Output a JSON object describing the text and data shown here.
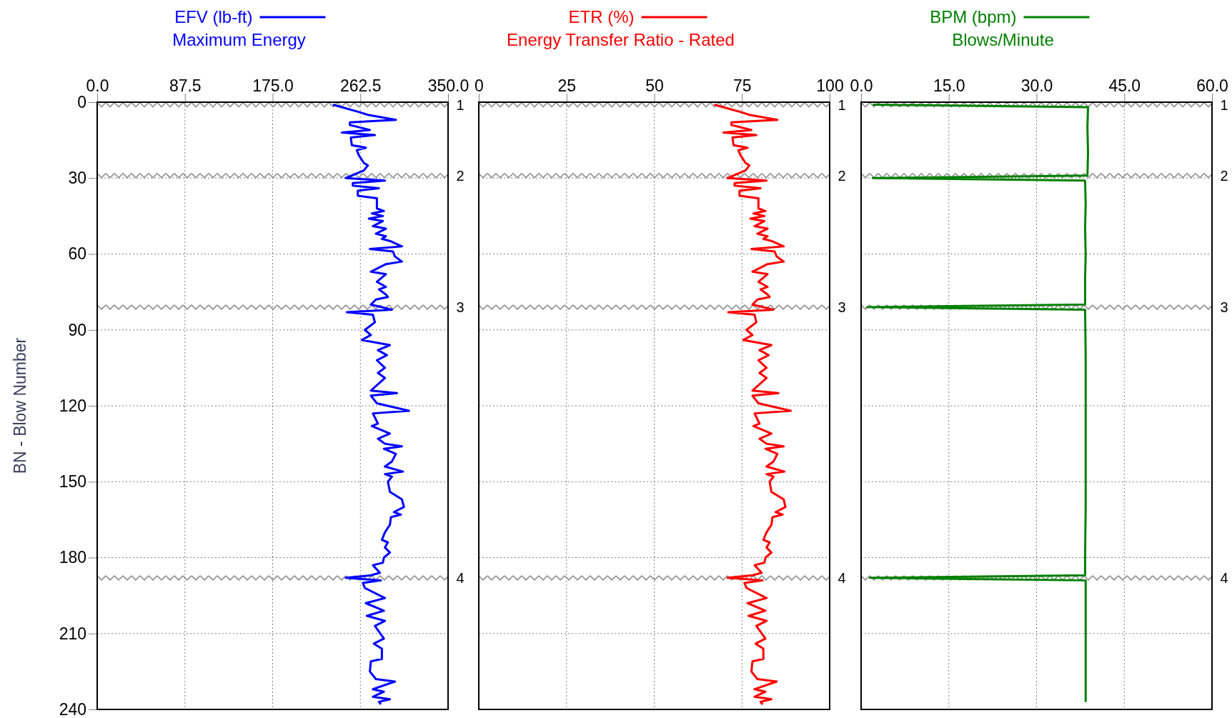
{
  "chart_data": [
    {
      "type": "line",
      "title": "Maximum Energy",
      "ylabel": "BN - Blow Number",
      "orientation": "horizontal",
      "legend": "top",
      "grid": true,
      "xlim": [
        0,
        350
      ],
      "xticks": [
        {
          "value": 0,
          "label": "0.0"
        },
        87.5,
        {
          "value": 175,
          "label": "175.0"
        },
        262.5,
        {
          "value": 350,
          "label": "350.0"
        }
      ],
      "ylim": [
        240,
        0
      ],
      "yticks": [
        0,
        30,
        60,
        90,
        120,
        150,
        180,
        210,
        240
      ],
      "ref_lines": [
        {
          "axis": "y",
          "value": 1,
          "color": "#808080"
        },
        {
          "axis": "y",
          "value": 29,
          "color": "#808080"
        },
        {
          "axis": "y",
          "value": 81,
          "color": "#808080"
        },
        {
          "axis": "y",
          "value": 188,
          "color": "#808080"
        }
      ],
      "annotations": [
        {
          "text": "1",
          "x": 350,
          "y": 1
        },
        {
          "text": "2",
          "x": 350,
          "y": 29
        },
        {
          "text": "3",
          "x": 350,
          "y": 81
        },
        {
          "text": "4",
          "x": 350,
          "y": 188
        }
      ],
      "x": [
        1,
        4,
        5,
        7,
        8,
        9,
        11,
        12,
        13,
        14,
        17,
        18,
        19,
        21,
        24,
        25,
        27,
        28,
        30,
        31,
        32,
        33,
        34,
        35,
        37,
        38,
        42,
        43,
        44,
        45,
        46,
        47,
        49,
        50,
        52,
        53,
        54,
        55,
        57,
        58,
        59,
        61,
        63,
        64,
        67,
        68,
        71,
        73,
        74,
        76,
        77,
        78,
        80,
        82,
        83,
        84,
        87,
        90,
        92,
        94,
        96,
        98,
        100,
        102,
        105,
        107,
        109,
        114,
        115,
        116,
        119,
        122,
        123,
        127,
        128,
        131,
        133,
        135,
        136,
        137,
        139,
        142,
        144,
        146,
        147,
        148,
        150,
        154,
        157,
        160,
        162,
        163,
        164,
        167,
        170,
        173,
        174,
        176,
        178,
        180,
        182,
        183,
        186,
        187,
        188,
        189,
        190,
        192,
        196,
        198,
        201,
        203,
        205,
        207,
        212,
        214,
        216,
        220,
        221,
        225,
        228,
        229,
        232,
        233,
        235,
        236,
        237,
        238
      ],
      "series": [
        {
          "name": "EFV (lb-ft)",
          "color": "#0000ff",
          "values": [
            235,
            262,
            270,
            298,
            252,
            252,
            272,
            244,
            277,
            253,
            254,
            268,
            259,
            261,
            266,
            270,
            266,
            260,
            248,
            287,
            255,
            255,
            281,
            260,
            260,
            279,
            279,
            286,
            274,
            285,
            271,
            285,
            275,
            288,
            278,
            288,
            284,
            293,
            304,
            272,
            295,
            297,
            304,
            288,
            273,
            288,
            279,
            288,
            281,
            288,
            290,
            278,
            273,
            294,
            249,
            275,
            277,
            267,
            273,
            264,
            292,
            280,
            289,
            279,
            287,
            280,
            287,
            273,
            299,
            273,
            279,
            311,
            275,
            280,
            274,
            292,
            280,
            287,
            304,
            286,
            298,
            294,
            287,
            305,
            287,
            294,
            290,
            292,
            304,
            306,
            296,
            303,
            293,
            292,
            287,
            284,
            290,
            287,
            292,
            286,
            285,
            275,
            282,
            273,
            248,
            283,
            265,
            267,
            287,
            268,
            286,
            269,
            287,
            277,
            286,
            276,
            284,
            284,
            273,
            272,
            278,
            297,
            275,
            286,
            275,
            292,
            281,
            283
          ]
        }
      ]
    },
    {
      "type": "line",
      "title": "Energy Transfer Ratio - Rated",
      "orientation": "horizontal",
      "legend": "top",
      "grid": true,
      "tick_labels": "x",
      "xlim": [
        0,
        100
      ],
      "xticks": [
        0,
        25,
        50,
        75,
        100
      ],
      "ylim": [
        240,
        0
      ],
      "yticks": [
        0,
        30,
        60,
        90,
        120,
        150,
        180,
        210,
        240
      ],
      "ref_lines": [
        {
          "axis": "y",
          "value": 1,
          "color": "#808080"
        },
        {
          "axis": "y",
          "value": 29,
          "color": "#808080"
        },
        {
          "axis": "y",
          "value": 81,
          "color": "#808080"
        },
        {
          "axis": "y",
          "value": 188,
          "color": "#808080"
        }
      ],
      "annotations": [
        {
          "text": "1",
          "x": 100,
          "y": 1
        },
        {
          "text": "2",
          "x": 100,
          "y": 29
        },
        {
          "text": "3",
          "x": 100,
          "y": 81
        },
        {
          "text": "4",
          "x": 100,
          "y": 188
        }
      ],
      "x": [
        1,
        4,
        5,
        7,
        8,
        9,
        11,
        12,
        13,
        14,
        17,
        18,
        19,
        21,
        24,
        25,
        27,
        28,
        30,
        31,
        32,
        33,
        34,
        35,
        37,
        38,
        42,
        43,
        44,
        45,
        46,
        47,
        49,
        50,
        52,
        53,
        54,
        55,
        57,
        58,
        59,
        61,
        63,
        64,
        67,
        68,
        71,
        73,
        74,
        76,
        77,
        78,
        80,
        82,
        83,
        84,
        87,
        90,
        92,
        94,
        96,
        98,
        100,
        102,
        105,
        107,
        109,
        114,
        115,
        116,
        119,
        122,
        123,
        127,
        128,
        131,
        133,
        135,
        136,
        137,
        139,
        142,
        144,
        146,
        147,
        148,
        150,
        154,
        157,
        160,
        162,
        163,
        164,
        167,
        170,
        173,
        174,
        176,
        178,
        180,
        182,
        183,
        186,
        187,
        188,
        189,
        190,
        192,
        196,
        198,
        201,
        203,
        205,
        207,
        212,
        214,
        216,
        220,
        221,
        225,
        228,
        229,
        232,
        233,
        235,
        236,
        237,
        238
      ],
      "series": [
        {
          "name": "ETR (%)",
          "color": "#ff0000",
          "values": [
            67.1,
            74.9,
            77.1,
            85.1,
            72.0,
            72.0,
            77.7,
            69.7,
            79.1,
            72.3,
            72.6,
            76.6,
            74.0,
            74.6,
            76.0,
            77.1,
            76.0,
            74.3,
            70.9,
            82.0,
            72.9,
            72.9,
            80.3,
            74.3,
            74.3,
            79.7,
            79.7,
            81.7,
            78.3,
            81.4,
            77.4,
            81.4,
            78.6,
            82.3,
            79.4,
            82.3,
            81.1,
            83.7,
            86.9,
            77.7,
            84.3,
            84.9,
            86.9,
            82.3,
            78.0,
            82.3,
            79.7,
            82.3,
            80.3,
            82.3,
            82.9,
            79.4,
            78.0,
            84.0,
            71.1,
            78.6,
            79.1,
            76.3,
            78.0,
            75.4,
            83.4,
            80.0,
            82.6,
            79.7,
            82.0,
            80.0,
            82.0,
            78.0,
            85.4,
            78.0,
            79.7,
            88.9,
            78.6,
            80.0,
            78.3,
            83.4,
            80.0,
            82.0,
            86.9,
            81.7,
            85.1,
            84.0,
            82.0,
            87.1,
            82.0,
            84.0,
            82.9,
            83.4,
            86.9,
            87.4,
            84.6,
            86.6,
            83.7,
            83.4,
            82.0,
            81.1,
            82.9,
            82.0,
            83.4,
            81.7,
            81.4,
            78.6,
            80.6,
            78.0,
            70.9,
            80.9,
            75.7,
            76.3,
            82.0,
            76.6,
            81.7,
            76.9,
            82.0,
            79.1,
            81.7,
            78.9,
            81.1,
            81.1,
            78.0,
            77.7,
            79.4,
            84.9,
            78.6,
            81.7,
            78.6,
            83.4,
            80.3,
            80.9
          ]
        }
      ]
    },
    {
      "type": "line",
      "title": "Blows/Minute",
      "orientation": "horizontal",
      "legend": "top",
      "grid": true,
      "tick_labels": "x",
      "xlim": [
        0,
        60
      ],
      "xticks": [
        {
          "value": 0,
          "label": "0.0"
        },
        {
          "value": 15,
          "label": "15.0"
        },
        {
          "value": 30,
          "label": "30.0"
        },
        {
          "value": 45,
          "label": "45.0"
        },
        {
          "value": 60,
          "label": "60.0"
        }
      ],
      "ylim": [
        240,
        0
      ],
      "yticks": [
        0,
        30,
        60,
        90,
        120,
        150,
        180,
        210,
        240
      ],
      "ref_lines": [
        {
          "axis": "y",
          "value": 1,
          "color": "#808080"
        },
        {
          "axis": "y",
          "value": 29,
          "color": "#808080"
        },
        {
          "axis": "y",
          "value": 81,
          "color": "#808080"
        },
        {
          "axis": "y",
          "value": 188,
          "color": "#808080"
        }
      ],
      "annotations": [
        {
          "text": "1",
          "x": 60,
          "y": 1
        },
        {
          "text": "2",
          "x": 60,
          "y": 29
        },
        {
          "text": "3",
          "x": 60,
          "y": 81
        },
        {
          "text": "4",
          "x": 60,
          "y": 188
        }
      ],
      "x": [
        1,
        2,
        10,
        20,
        29,
        30,
        31,
        40,
        50,
        60,
        70,
        80,
        81,
        82,
        100,
        120,
        140,
        160,
        180,
        187,
        188,
        189,
        200,
        220,
        237
      ],
      "series": [
        {
          "name": "BPM (bpm)",
          "color": "#008000",
          "values": [
            2,
            38.8,
            38.7,
            38.8,
            38.7,
            2,
            38.3,
            38.4,
            38.3,
            38.4,
            38.3,
            38.3,
            1,
            38.3,
            38.4,
            38.4,
            38.4,
            38.4,
            38.3,
            38.3,
            1.5,
            38.4,
            38.4,
            38.4,
            38.4
          ]
        }
      ]
    }
  ]
}
